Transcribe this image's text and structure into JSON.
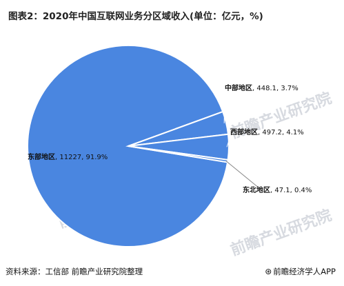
{
  "title": "图表2：2020年中国互联网业务分区域收入(单位：亿元，%)",
  "footer": {
    "source": "资料来源：工信部 前瞻产业研究院整理",
    "brand": "前瞻经济学人APP",
    "brand_icon": "qianzhan-logo-icon"
  },
  "watermark": "前瞻产业研究院",
  "colors": {
    "pie": "#4a86e0",
    "edge": "#ffffff"
  },
  "chart_data": {
    "type": "pie",
    "title": "图表2：2020年中国互联网业务分区域收入(单位：亿元，%)",
    "unit": "亿元，%",
    "slices": [
      {
        "name": "东部地区",
        "value": 11227,
        "percent": 91.9,
        "label": "东部地区, 11227, 91.9%"
      },
      {
        "name": "中部地区",
        "value": 448.1,
        "percent": 3.7,
        "label": "中部地区, 448.1, 3.7%"
      },
      {
        "name": "西部地区",
        "value": 497.2,
        "percent": 4.1,
        "label": "西部地区, 497.2, 4.1%"
      },
      {
        "name": "东北地区",
        "value": 47.1,
        "percent": 0.4,
        "label": "东北地区, 47.1, 0.4%"
      }
    ]
  }
}
